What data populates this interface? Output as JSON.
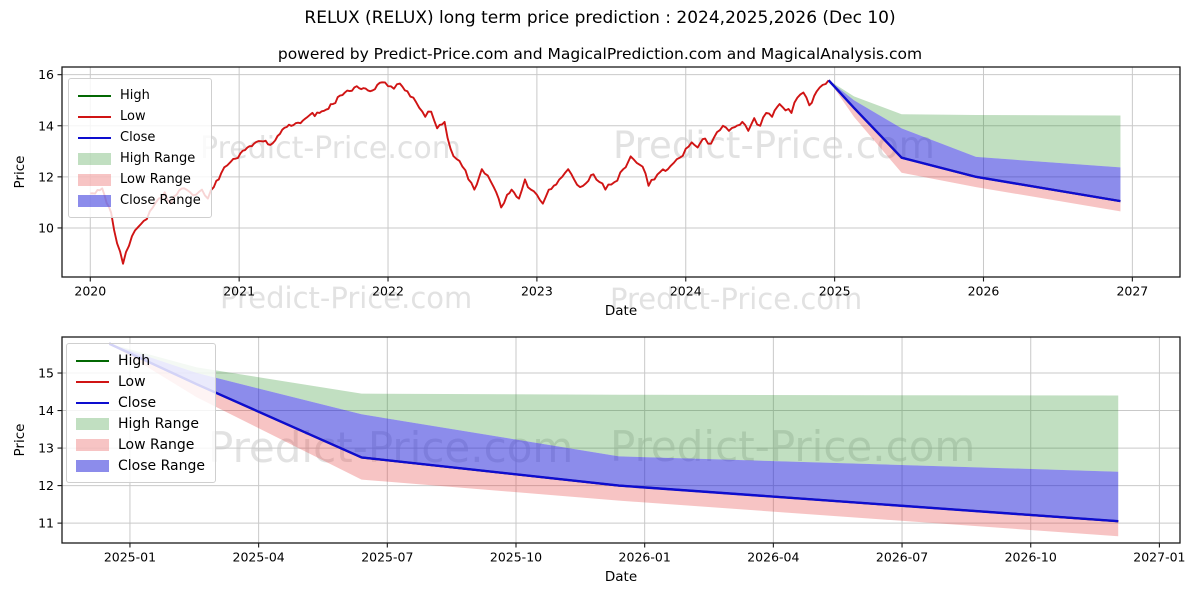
{
  "title": "RELUX (RELUX) long term price prediction : 2024,2025,2026 (Dec 10)",
  "subtitle": "powered by Predict-Price.com and MagicalPrediction.com and MagicalAnalysis.com",
  "watermark_text": "Predict-Price.com",
  "colors": {
    "high_line": "#036803",
    "low_line": "#d01414",
    "close_line": "#0d0dcf",
    "high_band": "rgba(34,139,34,0.28)",
    "low_band": "rgba(230,60,60,0.30)",
    "close_band": "rgba(25,25,215,0.50)",
    "grid": "#c9c9c9",
    "spine": "#1a1a1a",
    "tick_text": "#000000",
    "watermark": "#e2e2e2"
  },
  "legend": {
    "items": [
      {
        "label": "High",
        "swatch": "line",
        "color_key": "high_line"
      },
      {
        "label": "Low",
        "swatch": "line",
        "color_key": "low_line"
      },
      {
        "label": "Close",
        "swatch": "line",
        "color_key": "close_line"
      },
      {
        "label": "High Range",
        "swatch": "patch",
        "color_key": "high_band"
      },
      {
        "label": "Low Range",
        "swatch": "patch",
        "color_key": "low_band"
      },
      {
        "label": "Close Range",
        "swatch": "patch",
        "color_key": "close_band"
      }
    ]
  },
  "chart_data": [
    {
      "type": "line",
      "name": "long-term history and prediction",
      "xlabel": "Date",
      "ylabel": "Price",
      "xlim": [
        2019.81,
        2027.32
      ],
      "ylim": [
        8.08,
        16.3
      ],
      "xticks": [
        2020,
        2021,
        2022,
        2023,
        2024,
        2025,
        2026,
        2027
      ],
      "xtick_labels": [
        "2020",
        "2021",
        "2022",
        "2023",
        "2024",
        "2025",
        "2026",
        "2027"
      ],
      "yticks": [
        10,
        12,
        14,
        16
      ],
      "grid": true,
      "legend_position": "upper left",
      "history": {
        "name": "Low",
        "color_key": "low_line",
        "x": [
          2020.0,
          2020.08,
          2020.14,
          2020.18,
          2020.22,
          2020.26,
          2020.3,
          2020.34,
          2020.38,
          2020.42,
          2020.46,
          2020.5,
          2020.54,
          2020.58,
          2020.63,
          2020.67,
          2020.71,
          2020.75,
          2020.79,
          2020.83,
          2020.88,
          2020.92,
          2020.96,
          2021.04,
          2021.13,
          2021.21,
          2021.29,
          2021.38,
          2021.46,
          2021.54,
          2021.63,
          2021.71,
          2021.79,
          2021.88,
          2021.96,
          2022.0,
          2022.04,
          2022.08,
          2022.13,
          2022.17,
          2022.21,
          2022.25,
          2022.29,
          2022.33,
          2022.38,
          2022.42,
          2022.46,
          2022.5,
          2022.54,
          2022.58,
          2022.63,
          2022.67,
          2022.71,
          2022.76,
          2022.8,
          2022.83,
          2022.88,
          2022.92,
          2022.96,
          2023.0,
          2023.04,
          2023.08,
          2023.13,
          2023.17,
          2023.21,
          2023.25,
          2023.29,
          2023.33,
          2023.38,
          2023.42,
          2023.46,
          2023.5,
          2023.54,
          2023.58,
          2023.63,
          2023.67,
          2023.71,
          2023.75,
          2023.79,
          2023.83,
          2023.88,
          2023.92,
          2023.96,
          2024.0,
          2024.04,
          2024.08,
          2024.13,
          2024.17,
          2024.21,
          2024.25,
          2024.29,
          2024.33,
          2024.38,
          2024.42,
          2024.46,
          2024.5,
          2024.54,
          2024.58,
          2024.63,
          2024.67,
          2024.71,
          2024.75,
          2024.79,
          2024.83,
          2024.88,
          2024.92,
          2024.96
        ],
        "y": [
          11.35,
          11.55,
          10.6,
          9.4,
          8.6,
          9.3,
          9.9,
          10.15,
          10.35,
          10.8,
          11.15,
          11.4,
          10.95,
          11.3,
          11.55,
          11.4,
          11.3,
          11.5,
          11.15,
          11.6,
          12.15,
          12.45,
          12.7,
          13.05,
          13.4,
          13.25,
          13.85,
          14.1,
          14.35,
          14.5,
          14.85,
          15.3,
          15.55,
          15.35,
          15.7,
          15.55,
          15.45,
          15.65,
          15.35,
          15.1,
          14.7,
          14.35,
          14.55,
          13.9,
          14.15,
          13.1,
          12.7,
          12.4,
          11.9,
          11.5,
          12.3,
          12.05,
          11.6,
          10.8,
          11.3,
          11.5,
          11.15,
          11.9,
          11.5,
          11.3,
          10.95,
          11.5,
          11.7,
          12.0,
          12.3,
          11.9,
          11.6,
          11.75,
          12.1,
          11.8,
          11.5,
          11.7,
          11.85,
          12.3,
          12.8,
          12.55,
          12.4,
          11.65,
          11.9,
          12.2,
          12.3,
          12.55,
          12.75,
          13.1,
          13.35,
          13.15,
          13.5,
          13.3,
          13.75,
          14.0,
          13.8,
          13.95,
          14.15,
          13.8,
          14.3,
          14.0,
          14.5,
          14.35,
          14.85,
          14.6,
          14.5,
          15.1,
          15.3,
          14.8,
          15.35,
          15.6,
          15.78
        ]
      },
      "forecast": {
        "x": [
          2024.96,
          2025.13,
          2025.45,
          2025.95,
          2026.92
        ],
        "high": [
          15.78,
          14.7,
          12.75,
          12.0,
          11.05
        ],
        "low": [
          15.78,
          14.7,
          12.75,
          12.0,
          11.05
        ],
        "close": [
          15.78,
          14.7,
          12.75,
          12.0,
          11.05
        ],
        "close_upper": [
          15.78,
          15.0,
          13.9,
          12.78,
          12.37
        ],
        "high_upper": [
          15.78,
          15.15,
          14.45,
          14.42,
          14.4
        ],
        "low_lower": [
          15.78,
          14.35,
          12.16,
          11.6,
          10.65
        ]
      }
    },
    {
      "type": "line",
      "name": "prediction detail 2025-2027",
      "xlabel": "Date",
      "ylabel": "Price",
      "xlim": [
        2024.868,
        2027.04
      ],
      "ylim": [
        10.47,
        15.96
      ],
      "xticks": [
        2025.0,
        2025.25,
        2025.5,
        2025.75,
        2026.0,
        2026.25,
        2026.5,
        2026.75,
        2027.0
      ],
      "xtick_labels": [
        "2025-01",
        "2025-04",
        "2025-07",
        "2025-10",
        "2026-01",
        "2026-04",
        "2026-07",
        "2026-10",
        "2027-01"
      ],
      "yticks": [
        11,
        12,
        13,
        14,
        15
      ],
      "grid": true,
      "legend_position": "upper left",
      "history": null,
      "forecast": {
        "x": [
          2024.96,
          2025.13,
          2025.45,
          2025.95,
          2026.92
        ],
        "high": [
          15.78,
          14.7,
          12.75,
          12.0,
          11.05
        ],
        "low": [
          15.78,
          14.7,
          12.75,
          12.0,
          11.05
        ],
        "close": [
          15.78,
          14.7,
          12.75,
          12.0,
          11.05
        ],
        "close_upper": [
          15.78,
          15.0,
          13.9,
          12.78,
          12.37
        ],
        "high_upper": [
          15.78,
          15.15,
          14.45,
          14.42,
          14.4
        ],
        "low_lower": [
          15.78,
          14.35,
          12.16,
          11.6,
          10.65
        ]
      }
    }
  ]
}
